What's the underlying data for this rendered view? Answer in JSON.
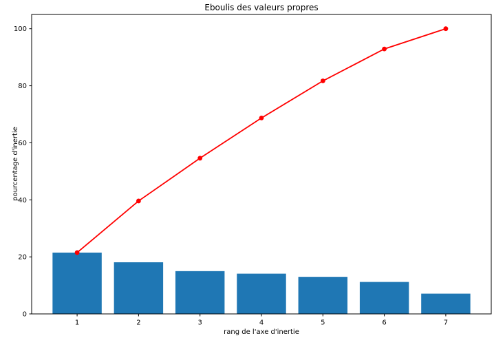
{
  "chart_data": {
    "type": "bar",
    "title": "Eboulis des valeurs propres",
    "xlabel": "rang de l'axe d'inertie",
    "ylabel": "pourcentage d'inertie",
    "categories": [
      1,
      2,
      3,
      4,
      5,
      6,
      7
    ],
    "series": [
      {
        "name": "inertie-par-axe-bars",
        "type": "bar",
        "color": "#1f77b4",
        "values": [
          21.5,
          18.1,
          15.0,
          14.1,
          13.0,
          11.2,
          7.1
        ]
      },
      {
        "name": "inertie-cumulee-line",
        "type": "line",
        "color": "#ff0000",
        "values": [
          21.5,
          39.6,
          54.6,
          68.7,
          81.7,
          92.9,
          100.0
        ]
      }
    ],
    "xticks": [
      1,
      2,
      3,
      4,
      5,
      6,
      7
    ],
    "yticks": [
      0,
      20,
      40,
      60,
      80,
      100
    ],
    "xlim": [
      0.26,
      7.74
    ],
    "ylim": [
      0,
      105
    ],
    "bar_width": 0.8,
    "grid": false,
    "legend": null,
    "frame_color": "#000000",
    "background": "#ffffff"
  }
}
